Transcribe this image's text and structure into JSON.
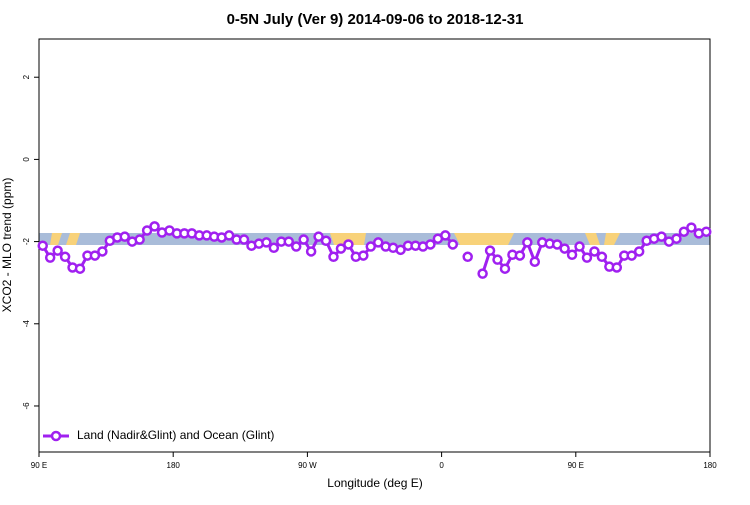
{
  "chart_data": {
    "type": "line",
    "title": "0-5N July (Ver 9)   2014-09-06 to 2018-12-31",
    "x_label": "Longitude (deg E)",
    "y_label": "XCO2 - MLO trend (ppm)",
    "x": [
      92.5,
      97.5,
      102.5,
      107.5,
      112.5,
      117.5,
      122.5,
      127.5,
      132.5,
      137.5,
      142.5,
      147.5,
      152.5,
      157.5,
      162.5,
      167.5,
      172.5,
      177.5,
      182.5,
      187.5,
      192.5,
      197.5,
      202.5,
      207.5,
      212.5,
      217.5,
      222.5,
      227.5,
      232.5,
      237.5,
      242.5,
      247.5,
      252.5,
      257.5,
      262.5,
      267.5,
      272.5,
      277.5,
      282.5,
      287.5,
      292.5,
      297.5,
      302.5,
      307.5,
      312.5,
      317.5,
      322.5,
      327.5,
      332.5,
      337.5,
      342.5,
      347.5,
      352.5,
      357.5,
      362.5,
      367.5,
      372.5,
      377.5,
      382.5,
      387.5,
      392.5,
      397.5,
      402.5,
      407.5,
      412.5,
      417.5,
      422.5,
      427.5,
      432.5,
      437.5,
      442.5,
      447.5,
      452.5,
      457.5,
      462.5,
      467.5,
      472.5,
      477.5,
      482.5,
      487.5,
      492.5,
      497.5,
      502.5,
      507.5,
      512.5,
      517.5,
      522.5,
      527.5,
      532.5,
      537.5
    ],
    "series": [
      {
        "name": "Land (Nadir&Glint) and Ocean (Glint)",
        "color": "#a020f0",
        "values": [
          -2.1,
          -2.39,
          -2.22,
          -2.37,
          -2.63,
          -2.66,
          -2.34,
          -2.34,
          -2.24,
          -1.98,
          -1.9,
          -1.88,
          -2.0,
          -1.95,
          -1.73,
          -1.63,
          -1.78,
          -1.73,
          -1.8,
          -1.8,
          -1.8,
          -1.85,
          -1.85,
          -1.88,
          -1.9,
          -1.85,
          -1.95,
          -1.95,
          -2.1,
          -2.05,
          -2.02,
          -2.15,
          -2.0,
          -2.0,
          -2.12,
          -1.95,
          -2.24,
          -1.88,
          -1.98,
          -2.37,
          -2.17,
          -2.07,
          -2.37,
          -2.34,
          -2.12,
          -2.02,
          -2.12,
          -2.15,
          -2.2,
          -2.1,
          -2.1,
          -2.12,
          -2.07,
          -1.93,
          -1.85,
          -2.07,
          null,
          -2.37,
          null,
          -2.78,
          -2.22,
          -2.44,
          -2.66,
          -2.32,
          -2.34,
          -2.02,
          -2.49,
          -2.02,
          -2.05,
          -2.07,
          -2.17,
          -2.32,
          -2.12,
          -2.39,
          -2.24,
          -2.37,
          -2.61,
          -2.63,
          -2.34,
          -2.34,
          -2.24,
          -1.98,
          -1.93,
          -1.88,
          -2.0,
          -1.93,
          -1.76,
          -1.66,
          -1.8,
          -1.76
        ]
      }
    ],
    "xlim": [
      90,
      540
    ],
    "xticks": [
      {
        "value": 90,
        "label": "90 E"
      },
      180,
      {
        "value": 270,
        "label": "90 W"
      },
      {
        "value": 360,
        "label": "0"
      },
      {
        "value": 450,
        "label": "90 E"
      },
      {
        "value": 540,
        "label": "180"
      }
    ],
    "ylim": [
      -7.12,
      2.93
    ],
    "yticks": [
      2,
      0,
      -2,
      -4,
      -6
    ],
    "legend": "bottom left"
  }
}
